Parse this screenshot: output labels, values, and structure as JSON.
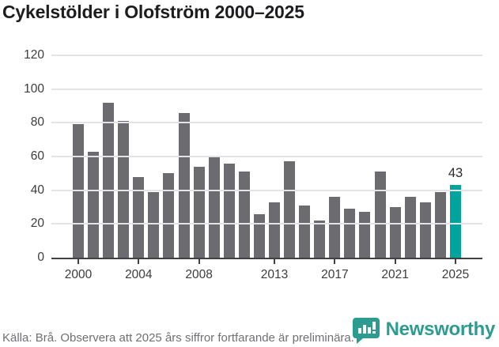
{
  "header": {
    "title": "Cykelstölder i Olofström 2000–2025"
  },
  "chart_data": {
    "type": "bar",
    "title": "Cykelstölder i Olofström 2000–2025",
    "categories": [
      2000,
      2001,
      2002,
      2003,
      2004,
      2005,
      2006,
      2007,
      2008,
      2009,
      2010,
      2011,
      2012,
      2013,
      2014,
      2015,
      2016,
      2017,
      2018,
      2019,
      2020,
      2021,
      2022,
      2023,
      2024,
      2025
    ],
    "values": [
      79,
      63,
      92,
      81,
      48,
      39,
      50,
      86,
      54,
      60,
      56,
      51,
      26,
      33,
      57,
      31,
      22,
      36,
      29,
      27,
      51,
      30,
      36,
      33,
      39,
      43
    ],
    "highlight": {
      "category": 2025,
      "value": 43,
      "data_label": "43"
    },
    "xlabel": "",
    "ylabel": "",
    "ylim": [
      0,
      120
    ],
    "yticks": [
      0,
      20,
      40,
      60,
      80,
      100,
      120
    ],
    "xtick_labels": [
      "2000",
      "2004",
      "2008",
      "2013",
      "2017",
      "2021",
      "2025"
    ],
    "xtick_indices": [
      0,
      4,
      8,
      13,
      17,
      21,
      25
    ],
    "grid": "horizontal",
    "legend": "none",
    "colors": {
      "bar": "#6c6b70",
      "highlight_bar": "#00a49c",
      "gridline": "#e4e4e6",
      "axis": "#414044",
      "tick_text": "#3c3c3e"
    }
  },
  "footer": {
    "source_note": "Källa: Brå. Observera att 2025 års siffror fortfarande är preliminära.",
    "brand": {
      "name": "Newsworthy",
      "logo_icon": "speech-bubble-bar-chart-icon",
      "logo_color": "#2d9c90"
    }
  }
}
